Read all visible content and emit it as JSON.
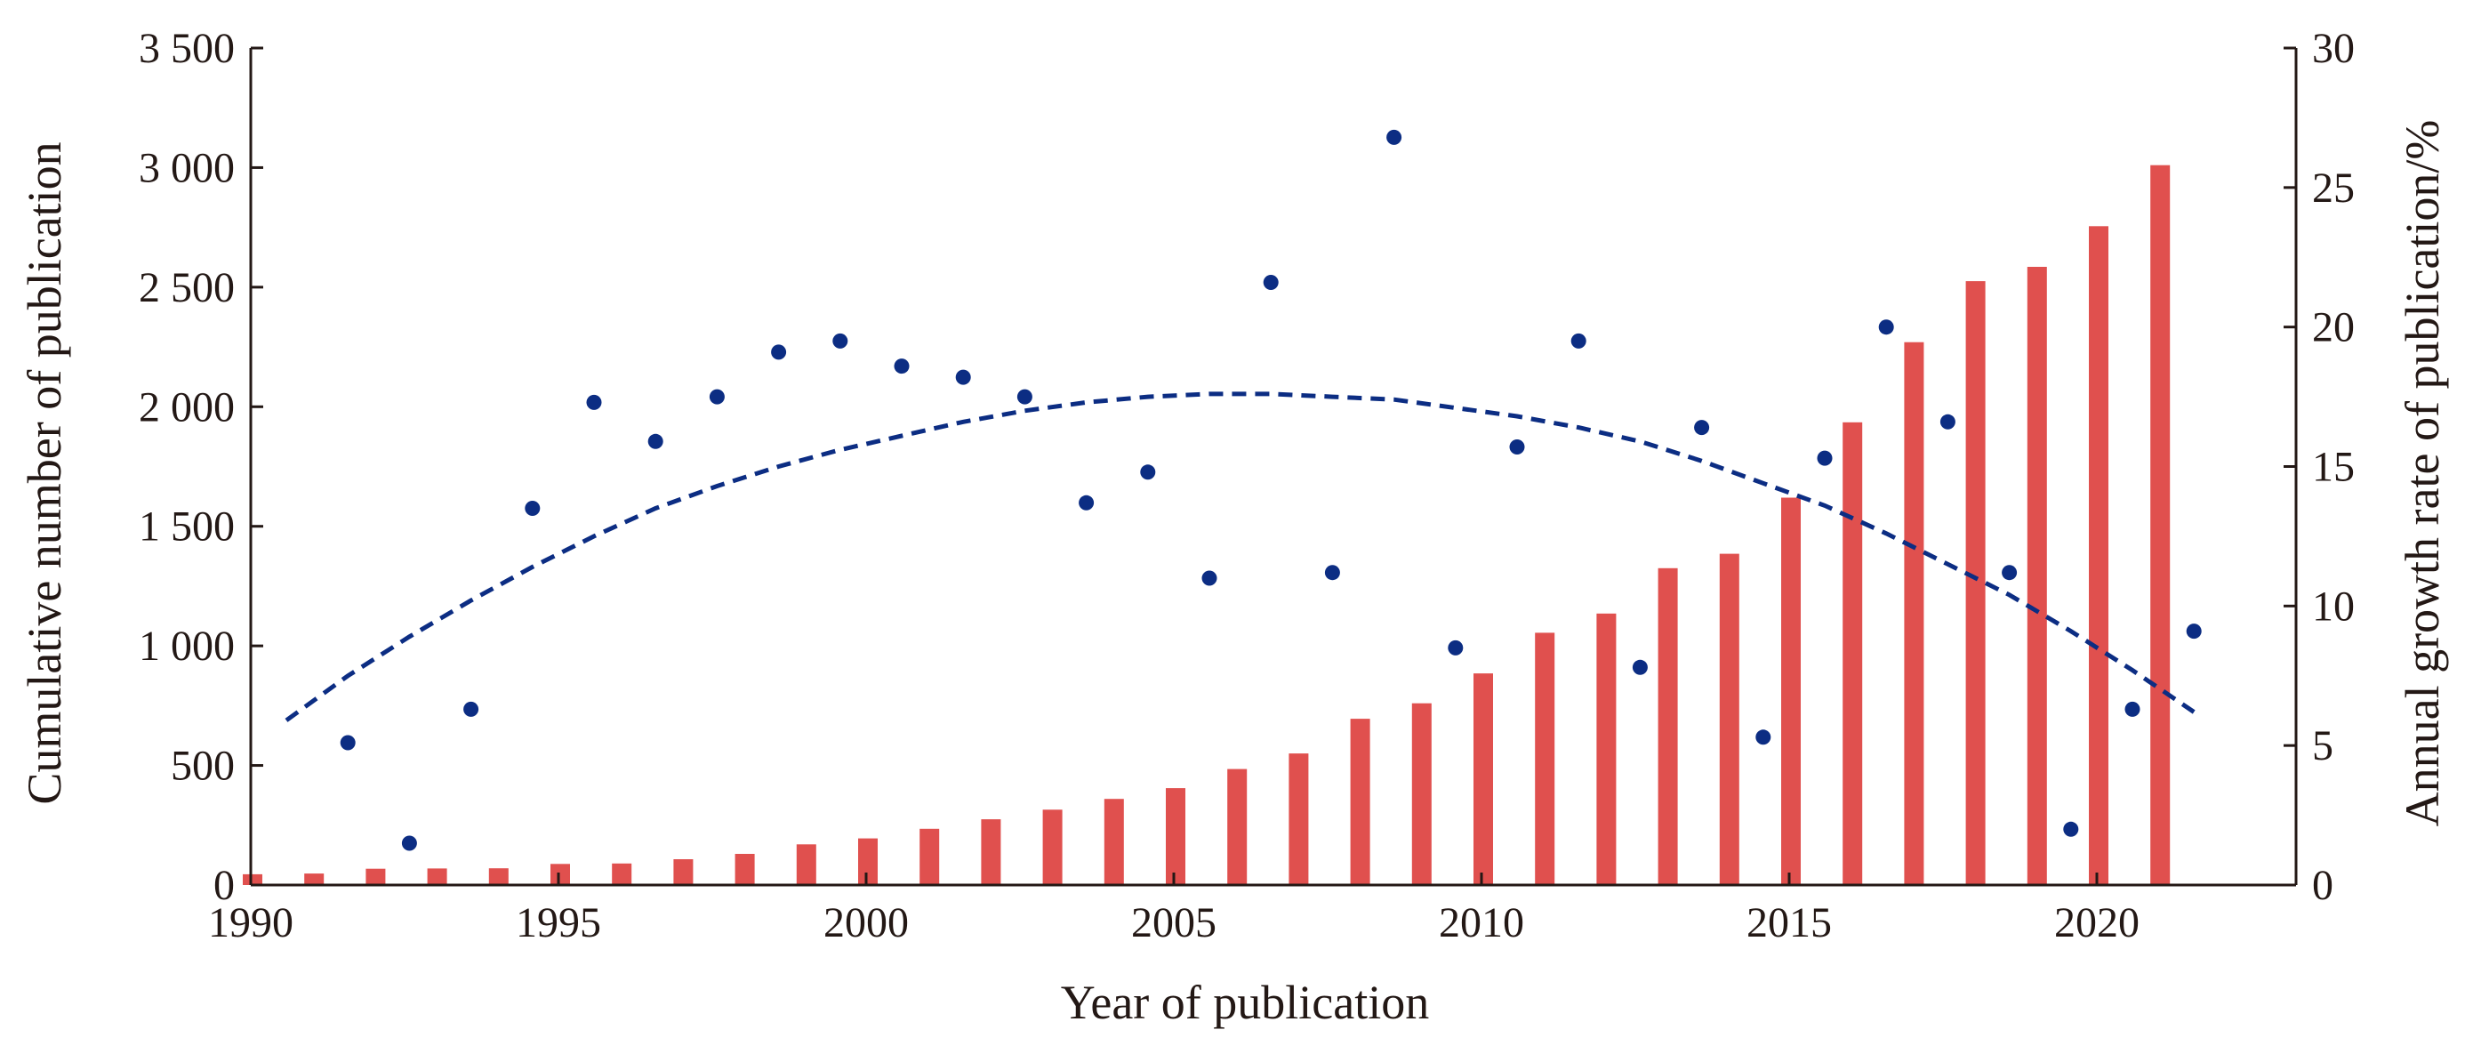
{
  "chart_data": {
    "type": "bar",
    "title": "",
    "xlabel": "Year of publication",
    "ylabel": "Cumulative number of publication",
    "y2label": "Annual growth rate of publication/%",
    "xlim": [
      1989.4,
      1978.2
    ],
    "ylim": [
      0,
      3500
    ],
    "y2lim": [
      0,
      30
    ],
    "x_ticks": [
      1990,
      1995,
      2000,
      2005,
      2010,
      2015,
      2020
    ],
    "x_tick_labels": [
      "1990",
      "1995",
      "2000",
      "2005",
      "2010",
      "2015",
      "2020"
    ],
    "y_ticks": [
      0,
      500,
      1000,
      1500,
      2000,
      2500,
      3000,
      3500
    ],
    "y_tick_labels": [
      "0",
      "500",
      "1 000",
      "1 500",
      "2 000",
      "2 500",
      "3 000",
      "3 500"
    ],
    "y2_ticks": [
      0,
      5,
      10,
      15,
      20,
      25,
      30
    ],
    "y2_tick_labels": [
      "0",
      "5",
      "10",
      "15",
      "20",
      "25",
      "30"
    ],
    "grid": false,
    "legend": "none",
    "colors": {
      "bars": "#e0504e",
      "points": "#0c2d83",
      "trend": "#0c2d83",
      "axis": "#231815"
    },
    "bars": {
      "axis": "left",
      "x": [
        1990,
        1991,
        1992,
        1993,
        1994,
        1995,
        1996,
        1997,
        1998,
        1999,
        2000,
        2001,
        2002,
        2003,
        2004,
        2005,
        2006,
        2007,
        2008,
        2009,
        2010,
        2011,
        2012,
        2013,
        2014,
        2015,
        2016,
        2017,
        2018,
        2019,
        2020,
        2021
      ],
      "values": [
        45,
        48,
        68,
        69,
        70,
        88,
        90,
        108,
        130,
        170,
        195,
        235,
        275,
        315,
        360,
        405,
        485,
        550,
        695,
        760,
        885,
        1055,
        1135,
        1325,
        1385,
        1620,
        1935,
        2270,
        2525,
        2585,
        2755,
        3010
      ]
    },
    "points": {
      "axis": "right",
      "x": [
        1991,
        1992,
        1993,
        1994,
        1995,
        1996,
        1997,
        1998,
        1999,
        2000,
        2001,
        2002,
        2003,
        2004,
        2005,
        2006,
        2007,
        2008,
        2009,
        2010,
        2011,
        2012,
        2013,
        2014,
        2015,
        2016,
        2017,
        2018,
        2019,
        2020,
        2021
      ],
      "values": [
        5.1,
        1.5,
        6.3,
        13.5,
        17.3,
        15.9,
        17.5,
        19.1,
        19.5,
        18.6,
        18.2,
        17.5,
        13.7,
        14.8,
        11.0,
        21.6,
        11.2,
        26.8,
        8.5,
        15.7,
        19.5,
        7.8,
        16.4,
        5.3,
        15.3,
        20.0,
        16.6,
        11.2,
        2.0,
        6.3,
        9.1
      ]
    },
    "trend": {
      "type": "polynomial",
      "axis": "right",
      "x": [
        1990,
        1991,
        1992,
        1993,
        1994,
        1995,
        1996,
        1997,
        1998,
        1999,
        2000,
        2001,
        2002,
        2003,
        2004,
        2005,
        2006,
        2007,
        2008,
        2009,
        2010,
        2011,
        2012,
        2013,
        2014,
        2015,
        2016,
        2017,
        2018,
        2019,
        2020,
        2021
      ],
      "values": [
        5.9,
        7.5,
        8.9,
        10.2,
        11.4,
        12.5,
        13.5,
        14.3,
        15.0,
        15.6,
        16.1,
        16.6,
        17.0,
        17.3,
        17.5,
        17.6,
        17.6,
        17.5,
        17.4,
        17.1,
        16.8,
        16.4,
        15.9,
        15.2,
        14.4,
        13.6,
        12.6,
        11.5,
        10.4,
        9.1,
        7.7,
        6.2
      ]
    }
  }
}
